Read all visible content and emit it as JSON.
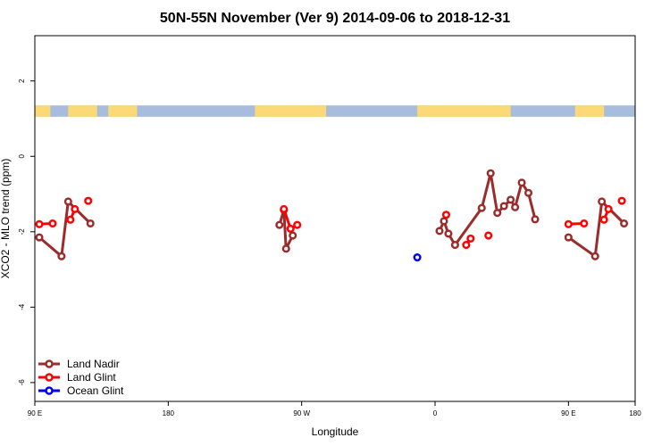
{
  "chart_data": {
    "type": "line",
    "title": "50N-55N November (Ver 9)   2014-09-06 to 2018-12-31",
    "xlabel": "Longitude",
    "ylabel": "XCO2 - MLO trend (ppm)",
    "xlim": [
      -90,
      180
    ],
    "ylim": [
      -6.5,
      3.2
    ],
    "x_ticks": [
      {
        "value": -90,
        "label": "90 E"
      },
      {
        "value": -30,
        "label": "180"
      },
      {
        "value": 30,
        "label": "90 W"
      },
      {
        "value": 90,
        "label": "0"
      },
      {
        "value": 150,
        "label": "90 E"
      },
      {
        "value": 180,
        "label": "180"
      }
    ],
    "y_ticks": [
      -6,
      -4,
      -2,
      0,
      2
    ],
    "land_mask_band": {
      "y_range": [
        1.05,
        1.35
      ],
      "land_color": "#FBD977",
      "ocean_color": "#A8BCDD"
    },
    "legend_position": "bottom-left",
    "series": [
      {
        "name": "Land Nadir",
        "color": "#9B2C2C",
        "segments": [
          [
            [
              -88,
              -2.15
            ],
            [
              -78,
              -2.65
            ],
            [
              -75,
              -1.2
            ],
            [
              -65,
              -1.78
            ]
          ],
          [
            [
              20,
              -1.82
            ],
            [
              22,
              -1.42
            ],
            [
              23,
              -2.45
            ],
            [
              26,
              -2.1
            ]
          ],
          [
            [
              92,
              -1.98
            ],
            [
              94,
              -1.72
            ],
            [
              96,
              -2.05
            ],
            [
              99,
              -2.35
            ],
            [
              111,
              -1.37
            ],
            [
              115,
              -0.45
            ],
            [
              118,
              -1.5
            ],
            [
              121,
              -1.32
            ],
            [
              124,
              -1.15
            ],
            [
              126,
              -1.35
            ],
            [
              129,
              -0.7
            ],
            [
              132,
              -0.97
            ],
            [
              135,
              -1.67
            ]
          ],
          [
            [
              150,
              -2.15
            ],
            [
              162,
              -2.65
            ],
            [
              165,
              -1.2
            ],
            [
              175,
              -1.78
            ]
          ]
        ]
      },
      {
        "name": "Land Glint",
        "color": "#FF0000",
        "segments": [
          [
            [
              -88,
              -1.8
            ],
            [
              -82,
              -1.78
            ]
          ],
          [
            [
              -74,
              -1.68
            ],
            [
              -72,
              -1.4
            ]
          ],
          [
            [
              -66,
              -1.18
            ]
          ],
          [
            [
              22,
              -1.4
            ],
            [
              25,
              -1.92
            ],
            [
              28,
              -1.82
            ]
          ],
          [
            [
              95,
              -1.55
            ]
          ],
          [
            [
              104,
              -2.35
            ],
            [
              106,
              -2.18
            ]
          ],
          [
            [
              114,
              -2.1
            ]
          ],
          [
            [
              150,
              -1.8
            ],
            [
              157,
              -1.78
            ]
          ],
          [
            [
              166,
              -1.68
            ],
            [
              168,
              -1.4
            ]
          ],
          [
            [
              174,
              -1.18
            ]
          ]
        ]
      },
      {
        "name": "Ocean Glint",
        "color": "#0000FF",
        "segments": [
          [
            [
              82,
              -2.68
            ]
          ]
        ]
      }
    ]
  }
}
